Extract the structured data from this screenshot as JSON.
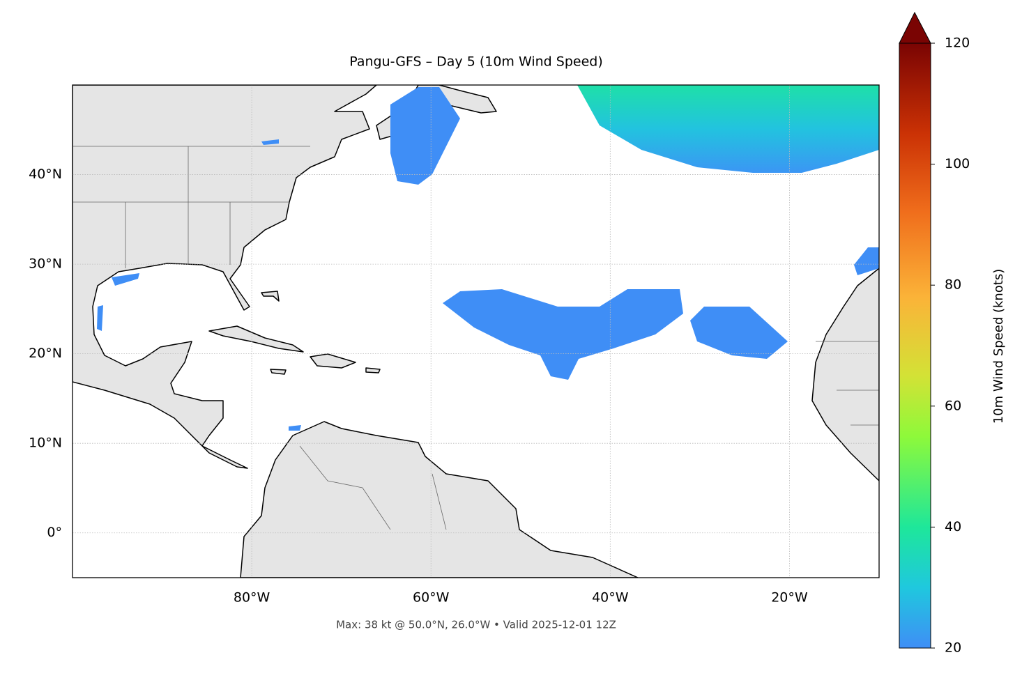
{
  "chart_data": {
    "type": "map",
    "title": "Pangu-GFS – Day 5 (10m Wind Speed)",
    "footer": "Max: 38 kt @ 50.0°N, 26.0°W • Valid 2025-12-01 12Z",
    "xlim": [
      -100,
      -10
    ],
    "ylim": [
      -5,
      50
    ],
    "xticks": [
      {
        "value": -80,
        "label": "80°W"
      },
      {
        "value": -60,
        "label": "60°W"
      },
      {
        "value": -40,
        "label": "40°W"
      },
      {
        "value": -20,
        "label": "20°W"
      }
    ],
    "yticks": [
      {
        "value": 0,
        "label": "0°"
      },
      {
        "value": 10,
        "label": "10°N"
      },
      {
        "value": 20,
        "label": "20°N"
      },
      {
        "value": 30,
        "label": "30°N"
      },
      {
        "value": 40,
        "label": "40°N"
      }
    ],
    "grid": true,
    "colorbar": {
      "label": "10m Wind Speed (knots)",
      "lim": [
        20,
        120
      ],
      "ticks": [
        20,
        40,
        60,
        80,
        100,
        120
      ],
      "extend": "max"
    }
  }
}
